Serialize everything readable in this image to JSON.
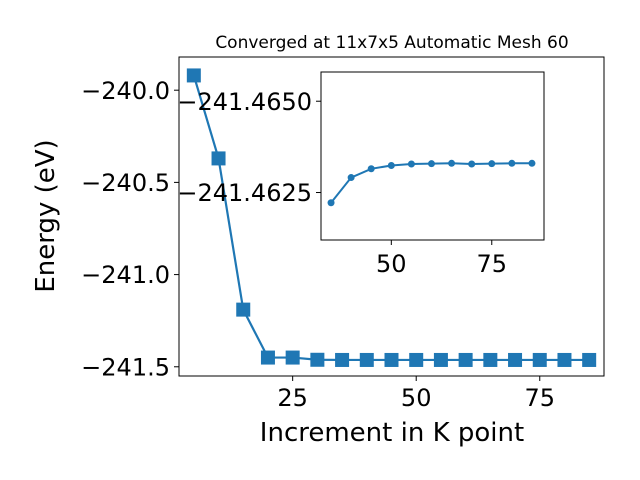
{
  "chart_data": [
    {
      "type": "line",
      "title": "Converged at 11x7x5 Automatic Mesh 60",
      "xlabel": "Increment in K point",
      "ylabel": "Energy (eV)",
      "xlim": [
        2,
        88
      ],
      "ylim": [
        -241.55,
        -239.82
      ],
      "xticks": [
        25,
        50,
        75
      ],
      "xtick_labels": [
        "25",
        "50",
        "75"
      ],
      "yticks": [
        -240.0,
        -240.5,
        -241.0,
        -241.5
      ],
      "ytick_labels": [
        "−240.0",
        "−240.5",
        "−241.0",
        "−241.5"
      ],
      "grid": false,
      "marker": "square",
      "color": "#1f77b4",
      "x": [
        5,
        10,
        15,
        20,
        25,
        30,
        35,
        40,
        45,
        50,
        55,
        60,
        65,
        70,
        75,
        80,
        85
      ],
      "y": [
        -239.92,
        -240.37,
        -241.19,
        -241.45,
        -241.45,
        -241.462,
        -241.463,
        -241.463,
        -241.463,
        -241.463,
        -241.463,
        -241.463,
        -241.463,
        -241.463,
        -241.463,
        -241.463,
        -241.463
      ]
    },
    {
      "type": "line",
      "title": "",
      "xlabel": "",
      "ylabel": "",
      "xlim": [
        32.5,
        88
      ],
      "ylim": [
        -241.4612,
        -241.4658
      ],
      "xticks": [
        50,
        75
      ],
      "xtick_labels": [
        "50",
        "75"
      ],
      "yticks": [
        -241.465,
        -241.4625
      ],
      "ytick_labels": [
        "−241.4650",
        "−241.4625"
      ],
      "grid": false,
      "marker": "circle",
      "color": "#1f77b4",
      "x": [
        35,
        40,
        45,
        50,
        55,
        60,
        65,
        70,
        75,
        80,
        85
      ],
      "y": [
        -241.46222,
        -241.46291,
        -241.46315,
        -241.46324,
        -241.46328,
        -241.46329,
        -241.4633,
        -241.46328,
        -241.46329,
        -241.4633,
        -241.4633
      ]
    }
  ]
}
